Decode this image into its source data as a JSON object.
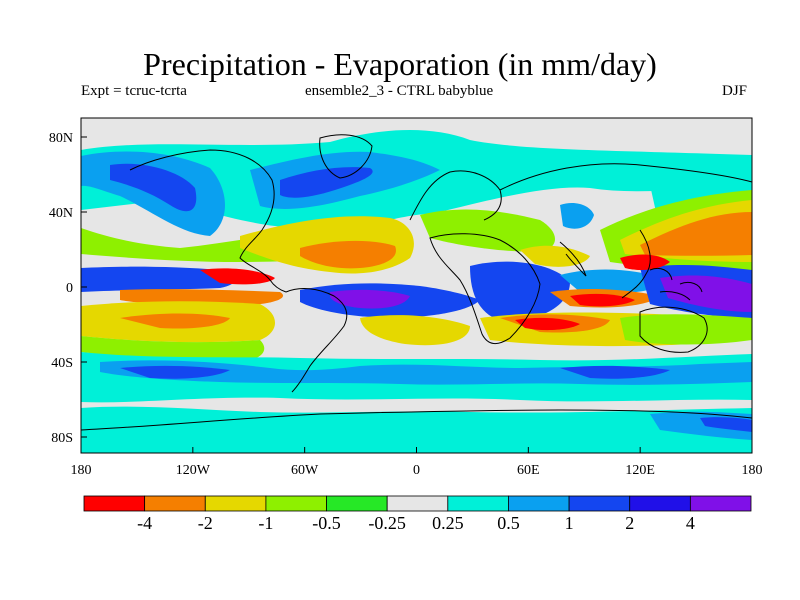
{
  "title": "Precipitation - Evaporation (in mm/day)",
  "subtitle_left": "Expt = tcruc-tcrta",
  "subtitle_center": "ensemble2_3 - CTRL babyblue",
  "subtitle_right": "DJF",
  "axes": {
    "lat_labels": [
      "80N",
      "40N",
      "0",
      "40S",
      "80S"
    ],
    "lon_labels": [
      "180",
      "120W",
      "60W",
      "0",
      "60E",
      "120E",
      "180"
    ]
  },
  "colorbar": {
    "colors": [
      "#ff0000",
      "#f57f00",
      "#e5d800",
      "#8ef000",
      "#26e826",
      "#e6e6e6",
      "#00f0d8",
      "#0aa0f0",
      "#1446f0",
      "#2010e8",
      "#8010e8"
    ],
    "labels": [
      "-4",
      "-2",
      "-1",
      "-0.5",
      "-0.25",
      "0.25",
      "0.5",
      "1",
      "2",
      "4"
    ]
  }
}
